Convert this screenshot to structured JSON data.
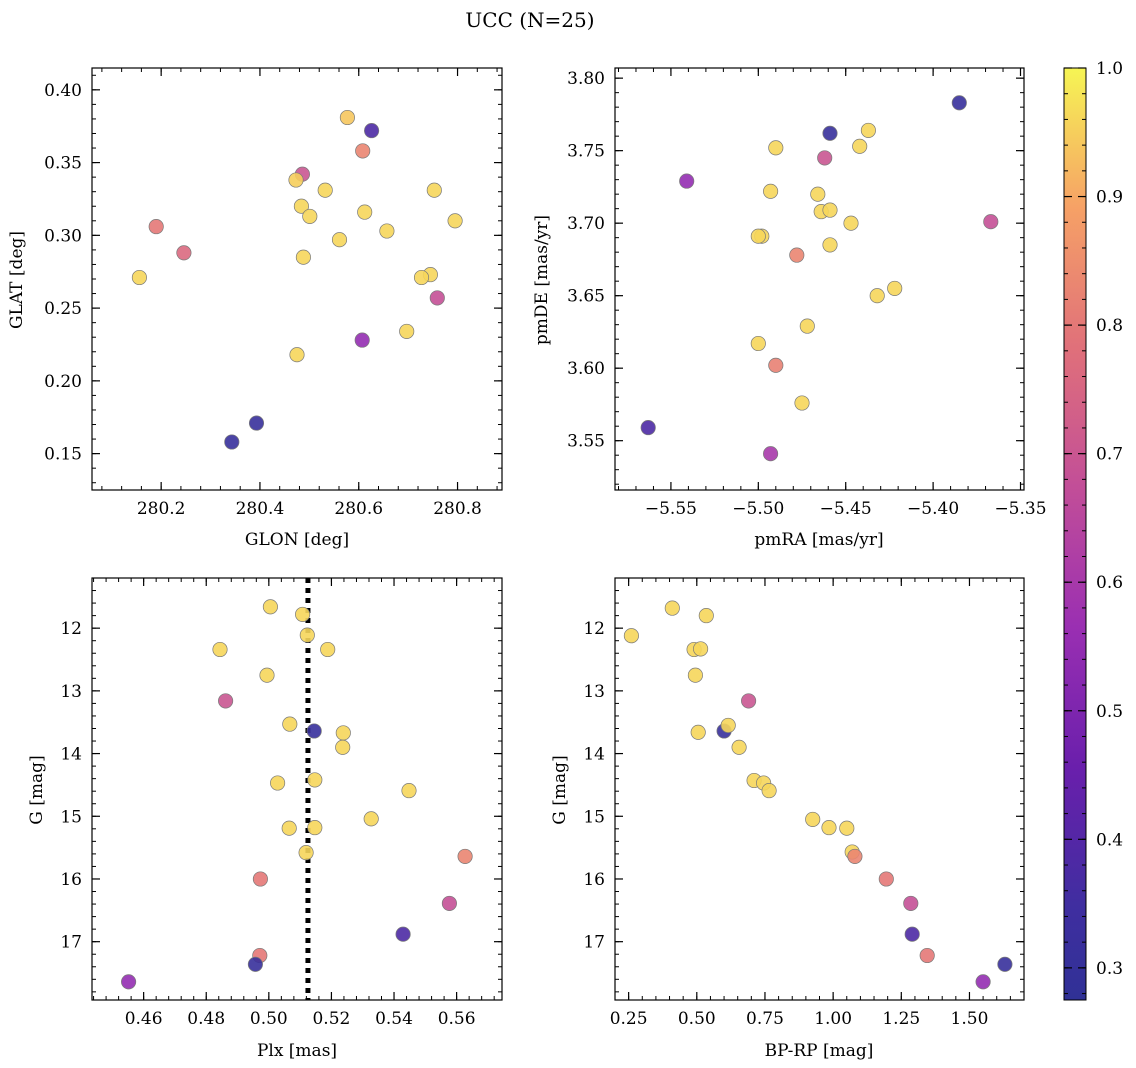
{
  "figure": {
    "title": "UCC (N=25)"
  },
  "colorbar": {
    "colormap": "plasma",
    "vmin": 0.275,
    "vmax": 1.0,
    "ticks": [
      0.3,
      0.4,
      0.5,
      0.6,
      0.7,
      0.8,
      0.9,
      1.0
    ],
    "tick_labels": [
      "0.3",
      "0.4",
      "0.5",
      "0.6",
      "0.7",
      "0.8",
      "0.9",
      "1.0"
    ]
  },
  "chart_data": [
    {
      "type": "scatter",
      "id": "glon_glat",
      "xlabel": "GLON [deg]",
      "ylabel": "GLAT [deg]",
      "xlim": [
        280.06,
        280.89
      ],
      "ylim": [
        0.125,
        0.415
      ],
      "y_inverted": false,
      "xticks": [
        280.2,
        280.4,
        280.6,
        280.8
      ],
      "xtick_labels": [
        "280.2",
        "280.4",
        "280.6",
        "280.8"
      ],
      "yticks": [
        0.15,
        0.2,
        0.25,
        0.3,
        0.35,
        0.4
      ],
      "ytick_labels": [
        "0.15",
        "0.20",
        "0.25",
        "0.30",
        "0.35",
        "0.40"
      ],
      "x": [
        280.577,
        280.626,
        280.608,
        280.486,
        280.473,
        280.484,
        280.532,
        280.753,
        280.501,
        280.612,
        280.795,
        280.19,
        280.657,
        280.561,
        280.246,
        280.488,
        280.156,
        280.745,
        280.727,
        280.759,
        280.697,
        280.607,
        280.475,
        280.393,
        280.343
      ],
      "y": [
        0.381,
        0.372,
        0.358,
        0.342,
        0.338,
        0.32,
        0.331,
        0.331,
        0.313,
        0.316,
        0.31,
        0.306,
        0.303,
        0.297,
        0.288,
        0.285,
        0.271,
        0.273,
        0.271,
        0.257,
        0.234,
        0.228,
        0.218,
        0.171,
        0.158
      ],
      "c": [
        0.94,
        0.38,
        0.83,
        0.7,
        0.95,
        0.96,
        0.96,
        0.96,
        0.96,
        0.96,
        0.96,
        0.8,
        0.96,
        0.96,
        0.76,
        0.96,
        0.96,
        0.96,
        0.96,
        0.68,
        0.96,
        0.55,
        0.96,
        0.31,
        0.31
      ]
    },
    {
      "type": "scatter",
      "id": "pm",
      "xlabel": "pmRA [mas/yr]",
      "ylabel": "pmDE [mas/yr]",
      "xlim": [
        -5.582,
        -5.348
      ],
      "ylim": [
        3.516,
        3.807
      ],
      "y_inverted": false,
      "xticks": [
        -5.55,
        -5.5,
        -5.45,
        -5.4,
        -5.35
      ],
      "xtick_labels": [
        "−5.55",
        "−5.50",
        "−5.45",
        "−5.40",
        "−5.35"
      ],
      "yticks": [
        3.55,
        3.6,
        3.65,
        3.7,
        3.75,
        3.8
      ],
      "ytick_labels": [
        "3.55",
        "3.60",
        "3.65",
        "3.70",
        "3.75",
        "3.80"
      ],
      "x": [
        -5.385,
        -5.459,
        -5.437,
        -5.442,
        -5.49,
        -5.462,
        -5.541,
        -5.493,
        -5.466,
        -5.464,
        -5.459,
        -5.367,
        -5.447,
        -5.498,
        -5.5,
        -5.459,
        -5.478,
        -5.422,
        -5.432,
        -5.472,
        -5.5,
        -5.49,
        -5.475,
        -5.563,
        -5.493
      ],
      "y": [
        3.783,
        3.762,
        3.764,
        3.753,
        3.752,
        3.745,
        3.729,
        3.722,
        3.72,
        3.708,
        3.709,
        3.701,
        3.7,
        3.691,
        3.691,
        3.685,
        3.678,
        3.655,
        3.65,
        3.629,
        3.617,
        3.602,
        3.576,
        3.559,
        3.541
      ],
      "c": [
        0.31,
        0.31,
        0.96,
        0.96,
        0.96,
        0.7,
        0.55,
        0.96,
        0.96,
        0.96,
        0.96,
        0.68,
        0.96,
        0.96,
        0.96,
        0.96,
        0.83,
        0.96,
        0.96,
        0.96,
        0.96,
        0.82,
        0.96,
        0.38,
        0.6
      ]
    },
    {
      "type": "scatter",
      "id": "plx_g",
      "xlabel": "Plx [mas]",
      "ylabel": "G [mag]",
      "xlim": [
        0.4435,
        0.5745
      ],
      "ylim": [
        11.2,
        17.93
      ],
      "y_inverted": true,
      "vline_x": 0.5125,
      "xticks": [
        0.46,
        0.48,
        0.5,
        0.52,
        0.54,
        0.56
      ],
      "xtick_labels": [
        "0.46",
        "0.48",
        "0.50",
        "0.52",
        "0.54",
        "0.56"
      ],
      "yticks": [
        12,
        13,
        14,
        15,
        16,
        17
      ],
      "ytick_labels": [
        "12",
        "13",
        "14",
        "15",
        "16",
        "17"
      ],
      "x": [
        0.5005,
        0.5108,
        0.5123,
        0.4844,
        0.5188,
        0.4994,
        0.4862,
        0.5067,
        0.5145,
        0.5238,
        0.5236,
        0.5028,
        0.5147,
        0.5448,
        0.5327,
        0.5065,
        0.5147,
        0.5119,
        0.5627,
        0.4973,
        0.5577,
        0.5429,
        0.4971,
        0.4957,
        0.4552
      ],
      "y": [
        11.66,
        11.78,
        12.11,
        12.34,
        12.34,
        12.75,
        13.16,
        13.53,
        13.64,
        13.67,
        13.9,
        14.47,
        14.42,
        14.59,
        15.04,
        15.19,
        15.18,
        15.58,
        15.64,
        16.0,
        16.39,
        16.88,
        17.22,
        17.36,
        17.64
      ],
      "c": [
        0.96,
        0.96,
        0.96,
        0.96,
        0.96,
        0.96,
        0.7,
        0.96,
        0.31,
        0.96,
        0.96,
        0.96,
        0.96,
        0.96,
        0.96,
        0.96,
        0.96,
        0.96,
        0.83,
        0.8,
        0.68,
        0.38,
        0.8,
        0.31,
        0.55
      ]
    },
    {
      "type": "scatter",
      "id": "cmd",
      "xlabel": "BP-RP [mag]",
      "ylabel": "G [mag]",
      "xlim": [
        0.2,
        1.7
      ],
      "ylim": [
        11.2,
        17.93
      ],
      "y_inverted": true,
      "xticks": [
        0.25,
        0.5,
        0.75,
        1.0,
        1.25,
        1.5
      ],
      "xtick_labels": [
        "0.25",
        "0.50",
        "0.75",
        "1.00",
        "1.25",
        "1.50"
      ],
      "yticks": [
        12,
        13,
        14,
        15,
        16,
        17
      ],
      "ytick_labels": [
        "12",
        "13",
        "14",
        "15",
        "16",
        "17"
      ],
      "x": [
        0.26,
        0.41,
        0.535,
        0.49,
        0.514,
        0.495,
        0.69,
        0.6,
        0.615,
        0.505,
        0.655,
        0.71,
        0.745,
        0.765,
        0.925,
        0.985,
        1.05,
        1.07,
        1.08,
        1.195,
        1.285,
        1.29,
        1.345,
        1.63,
        1.55
      ],
      "y": [
        12.12,
        11.68,
        11.8,
        12.34,
        12.33,
        12.75,
        13.16,
        13.64,
        13.55,
        13.66,
        13.9,
        14.43,
        14.47,
        14.59,
        15.05,
        15.18,
        15.19,
        15.57,
        15.64,
        16.0,
        16.39,
        16.88,
        17.22,
        17.36,
        17.64
      ],
      "c": [
        0.96,
        0.96,
        0.96,
        0.96,
        0.96,
        0.96,
        0.7,
        0.31,
        0.96,
        0.96,
        0.96,
        0.96,
        0.96,
        0.96,
        0.96,
        0.96,
        0.96,
        0.96,
        0.83,
        0.8,
        0.68,
        0.38,
        0.8,
        0.31,
        0.55
      ]
    }
  ]
}
